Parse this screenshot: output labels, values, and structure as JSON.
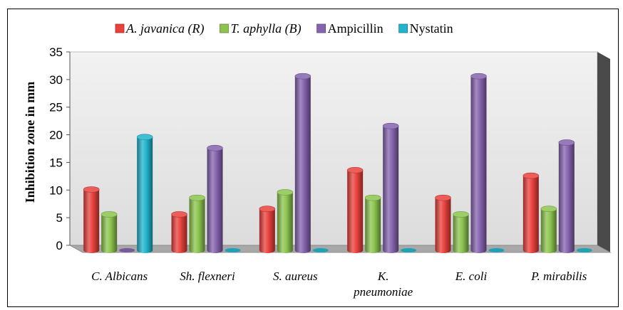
{
  "chart_data": {
    "type": "bar",
    "title": "",
    "ylabel": "Inhibition zone in mm",
    "xlabel": "",
    "ylim": [
      0,
      35
    ],
    "yticks": [
      "0",
      "5",
      "10",
      "15",
      "20",
      "25",
      "30",
      "35"
    ],
    "categories": [
      [
        "C. Albicans"
      ],
      [
        "Sh. flexneri"
      ],
      [
        "S. aureus"
      ],
      [
        "K.",
        "pneumoniae"
      ],
      [
        "E. coli"
      ],
      [
        "P. mirabilis"
      ]
    ],
    "series": [
      {
        "name": "A. javanica (R)",
        "italic": true,
        "color": "#e8413c",
        "values": [
          11,
          6.5,
          7.5,
          14.5,
          9.5,
          13.5
        ]
      },
      {
        "name": "T. aphylla (B)",
        "italic": true,
        "color": "#8cc44f",
        "values": [
          6.5,
          9.5,
          10.5,
          9.5,
          6.5,
          7.5
        ]
      },
      {
        "name": "Ampicillin",
        "italic": false,
        "color": "#8563ae",
        "values": [
          0,
          18.5,
          31.5,
          22.5,
          31.5,
          19.5
        ]
      },
      {
        "name": "Nystatin",
        "italic": false,
        "color": "#21b4cc",
        "values": [
          20.5,
          0,
          0,
          0,
          0,
          0
        ]
      }
    ],
    "legend_position": "top",
    "grid": false,
    "style": "3d-cylinder"
  }
}
